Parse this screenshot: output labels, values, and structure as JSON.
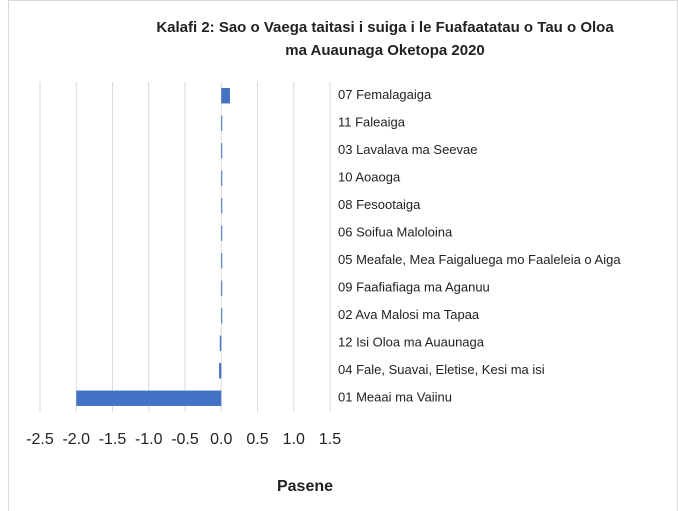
{
  "chart_data": {
    "type": "hbar",
    "title": [
      "Kalafi 2: Sao o Vaega taitasi i suiga i le Fuafaatatau o Tau o Oloa",
      "ma Auaunaga Oketopa 2020"
    ],
    "categories": [
      "07 Femalagaiga",
      "11 Faleaiga",
      "03 Lavalava ma Seevae",
      "10 Aoaoga",
      "08 Fesootaiga",
      "06 Soifua Maloloina",
      "05 Meafale, Mea Faigaluega mo Faaleleia o Aiga",
      "09 Faafiafiaga ma Aganuu",
      "02 Ava Malosi ma Tapaa",
      "12 Isi Oloa ma Auaunaga",
      "04 Fale, Suavai, Eletise, Kesi ma isi",
      "01 Meaai ma Vaiinu"
    ],
    "values": [
      0.12,
      0,
      0,
      0,
      0,
      0,
      0,
      0,
      0,
      -0.02,
      -0.03,
      -2.0
    ],
    "color": "#4472c4",
    "xlabel": "Pasene",
    "xlim": [
      -2.5,
      1.5
    ],
    "xticks": [
      -2.5,
      {
        "value": -2,
        "label": "-2.0"
      },
      -1.5,
      {
        "value": -1,
        "label": "-1.0"
      },
      -0.5,
      {
        "value": 0,
        "label": "0.0"
      },
      0.5,
      {
        "value": 1,
        "label": "1.0"
      },
      1.5
    ],
    "grid": true
  }
}
